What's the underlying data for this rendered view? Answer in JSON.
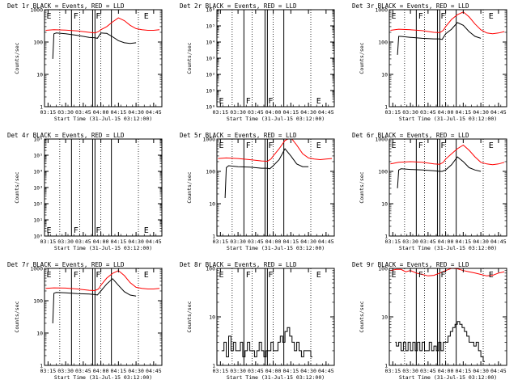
{
  "title_template": "BLACK = Events, RED = LLD",
  "ylabel": "Counts/sec",
  "xlabel": "Start Time (31-Jul-15 03:12:00)",
  "x_ticks": [
    "03:15",
    "03:30",
    "03:45",
    "04:00",
    "04:15",
    "04:30",
    "04:45"
  ],
  "x_range": [
    "03:12",
    "04:52"
  ],
  "dotted_times": [
    "03:25",
    "03:42",
    "04:00",
    "04:32"
  ],
  "solid_times": [
    "03:35",
    "03:53",
    "03:55",
    "04:09"
  ],
  "colors": {
    "events": "#000000",
    "lld": "#ff0000"
  },
  "chart_data": [
    {
      "type": "line",
      "panel": "Det 1r",
      "scale": "log",
      "ylim": [
        1,
        1000
      ],
      "y_ticks": [
        "1",
        "10",
        "100",
        "1000"
      ],
      "markers": [
        {
          "t": "03:13",
          "label": "E"
        },
        {
          "t": "03:36",
          "label": "F"
        },
        {
          "t": "03:55",
          "label": "F"
        },
        {
          "t": "04:36",
          "label": "E"
        }
      ],
      "series": [
        {
          "name": "Events",
          "x": [
            "03:19",
            "03:20",
            "03:22",
            "03:30",
            "03:40",
            "03:50",
            "03:55",
            "03:57",
            "04:00",
            "04:05",
            "04:10",
            "04:15",
            "04:20",
            "04:25",
            "04:30"
          ],
          "values": [
            30,
            180,
            190,
            180,
            160,
            140,
            135,
            130,
            190,
            185,
            145,
            110,
            95,
            90,
            95
          ]
        },
        {
          "name": "LLD",
          "x": [
            "03:13",
            "03:20",
            "03:30",
            "03:40",
            "03:50",
            "03:55",
            "03:58",
            "04:00",
            "04:05",
            "04:10",
            "04:15",
            "04:20",
            "04:25",
            "04:30",
            "04:35",
            "04:40",
            "04:45",
            "04:50"
          ],
          "values": [
            230,
            240,
            235,
            220,
            200,
            190,
            210,
            240,
            300,
            420,
            560,
            460,
            330,
            260,
            240,
            230,
            230,
            240
          ]
        }
      ]
    },
    {
      "type": "line",
      "panel": "Det 2r",
      "scale": "log",
      "ylim": [
        1,
        1000000
      ],
      "y_ticks": [
        "10⁰",
        "10¹",
        "10²",
        "10³",
        "10⁴",
        "10⁵",
        "10⁶"
      ],
      "markers": [
        {
          "t": "03:13",
          "label": "E"
        },
        {
          "t": "03:36",
          "label": "F"
        },
        {
          "t": "03:55",
          "label": "F"
        },
        {
          "t": "04:36",
          "label": "E"
        }
      ],
      "series": []
    },
    {
      "type": "line",
      "panel": "Det 3r",
      "scale": "log",
      "ylim": [
        1,
        1000
      ],
      "y_ticks": [
        "1",
        "10",
        "100",
        "1000"
      ],
      "markers": [
        {
          "t": "03:13",
          "label": "E"
        },
        {
          "t": "03:36",
          "label": "F"
        },
        {
          "t": "03:55",
          "label": "F"
        },
        {
          "t": "04:36",
          "label": "E"
        }
      ],
      "series": [
        {
          "name": "Events",
          "x": [
            "03:19",
            "03:20",
            "03:22",
            "03:30",
            "03:40",
            "03:50",
            "03:55",
            "03:57",
            "04:00",
            "04:05",
            "04:10",
            "04:15",
            "04:20",
            "04:25",
            "04:30"
          ],
          "values": [
            40,
            150,
            150,
            140,
            130,
            125,
            125,
            120,
            180,
            250,
            400,
            330,
            210,
            150,
            130
          ]
        },
        {
          "name": "LLD",
          "x": [
            "03:13",
            "03:20",
            "03:30",
            "03:40",
            "03:50",
            "03:55",
            "03:58",
            "04:00",
            "04:05",
            "04:10",
            "04:15",
            "04:20",
            "04:25",
            "04:30",
            "04:35",
            "04:40",
            "04:45",
            "04:50"
          ],
          "values": [
            230,
            250,
            240,
            225,
            200,
            195,
            230,
            300,
            500,
            700,
            850,
            600,
            360,
            240,
            190,
            180,
            190,
            210
          ]
        }
      ]
    },
    {
      "type": "line",
      "panel": "Det 4r",
      "scale": "log",
      "ylim": [
        1,
        1000000
      ],
      "y_ticks": [
        "10⁰",
        "10¹",
        "10²",
        "10³",
        "10⁴",
        "10⁵",
        "10⁶"
      ],
      "markers": [
        {
          "t": "03:13",
          "label": "E"
        },
        {
          "t": "03:36",
          "label": "F"
        },
        {
          "t": "03:55",
          "label": "F"
        },
        {
          "t": "04:36",
          "label": "E"
        }
      ],
      "series": []
    },
    {
      "type": "line",
      "panel": "Det 5r",
      "scale": "log",
      "ylim": [
        1,
        1000
      ],
      "y_ticks": [
        "1",
        "10",
        "100",
        "1000"
      ],
      "markers": [
        {
          "t": "03:13",
          "label": "E"
        },
        {
          "t": "03:36",
          "label": "F"
        },
        {
          "t": "03:55",
          "label": "F"
        },
        {
          "t": "04:36",
          "label": "E"
        }
      ],
      "series": [
        {
          "name": "Events",
          "x": [
            "03:19",
            "03:20",
            "03:22",
            "03:30",
            "03:40",
            "03:50",
            "03:55",
            "03:57",
            "04:00",
            "04:05",
            "04:10",
            "04:15",
            "04:20",
            "04:25",
            "04:30"
          ],
          "values": [
            15,
            130,
            150,
            140,
            135,
            125,
            125,
            120,
            150,
            230,
            500,
            300,
            170,
            140,
            140
          ]
        },
        {
          "name": "LLD",
          "x": [
            "03:13",
            "03:20",
            "03:30",
            "03:40",
            "03:50",
            "03:55",
            "03:58",
            "04:00",
            "04:05",
            "04:10",
            "04:15",
            "04:20",
            "04:25",
            "04:30",
            "04:35",
            "04:40",
            "04:45",
            "04:50"
          ],
          "values": [
            250,
            260,
            250,
            230,
            210,
            205,
            240,
            300,
            500,
            900,
            1100,
            650,
            350,
            260,
            240,
            230,
            240,
            250
          ]
        }
      ]
    },
    {
      "type": "line",
      "panel": "Det 6r",
      "scale": "log",
      "ylim": [
        1,
        1000
      ],
      "y_ticks": [
        "1",
        "10",
        "100",
        "1000"
      ],
      "markers": [
        {
          "t": "03:13",
          "label": "E"
        },
        {
          "t": "03:36",
          "label": "F"
        },
        {
          "t": "03:55",
          "label": "F"
        },
        {
          "t": "04:36",
          "label": "E"
        }
      ],
      "series": [
        {
          "name": "Events",
          "x": [
            "03:19",
            "03:20",
            "03:22",
            "03:30",
            "03:40",
            "03:50",
            "03:55",
            "03:57",
            "04:00",
            "04:05",
            "04:10",
            "04:15",
            "04:20",
            "04:25",
            "04:30"
          ],
          "values": [
            30,
            110,
            120,
            115,
            110,
            105,
            100,
            100,
            110,
            160,
            280,
            200,
            130,
            110,
            100
          ]
        },
        {
          "name": "LLD",
          "x": [
            "03:13",
            "03:20",
            "03:30",
            "03:40",
            "03:50",
            "03:55",
            "03:58",
            "04:00",
            "04:05",
            "04:10",
            "04:15",
            "04:20",
            "04:25",
            "04:30",
            "04:35",
            "04:40",
            "04:45",
            "04:50"
          ],
          "values": [
            170,
            190,
            200,
            190,
            170,
            165,
            190,
            240,
            350,
            500,
            650,
            450,
            280,
            190,
            170,
            160,
            170,
            190
          ]
        }
      ]
    },
    {
      "type": "line",
      "panel": "Det 7r",
      "scale": "log",
      "ylim": [
        1,
        1000
      ],
      "y_ticks": [
        "1",
        "10",
        "100",
        "1000"
      ],
      "markers": [
        {
          "t": "03:13",
          "label": "E"
        },
        {
          "t": "03:36",
          "label": "F"
        },
        {
          "t": "03:55",
          "label": "F"
        },
        {
          "t": "04:36",
          "label": "E"
        }
      ],
      "series": [
        {
          "name": "Events",
          "x": [
            "03:19",
            "03:20",
            "03:22",
            "03:30",
            "03:40",
            "03:50",
            "03:55",
            "03:57",
            "04:00",
            "04:05",
            "04:10",
            "04:15",
            "04:20",
            "04:25",
            "04:30"
          ],
          "values": [
            20,
            170,
            180,
            175,
            165,
            160,
            155,
            150,
            200,
            330,
            480,
            300,
            190,
            150,
            140
          ]
        },
        {
          "name": "LLD",
          "x": [
            "03:13",
            "03:20",
            "03:30",
            "03:40",
            "03:50",
            "03:55",
            "03:58",
            "04:00",
            "04:05",
            "04:10",
            "04:15",
            "04:20",
            "04:25",
            "04:30",
            "04:35",
            "04:40",
            "04:45",
            "04:50"
          ],
          "values": [
            240,
            250,
            245,
            230,
            210,
            205,
            230,
            300,
            500,
            700,
            850,
            600,
            360,
            260,
            240,
            230,
            230,
            240
          ]
        }
      ]
    },
    {
      "type": "line",
      "panel": "Det 8r",
      "scale": "log",
      "ylim": [
        1,
        100
      ],
      "y_ticks": [
        "1",
        "10",
        "100"
      ],
      "markers": [
        {
          "t": "03:13",
          "label": "E"
        },
        {
          "t": "03:36",
          "label": "F"
        },
        {
          "t": "03:55",
          "label": "F"
        },
        {
          "t": "04:36",
          "label": "E"
        }
      ],
      "series": [
        {
          "name": "Events",
          "x": [
            "03:16",
            "03:18",
            "03:20",
            "03:22",
            "03:24",
            "03:26",
            "03:28",
            "03:30",
            "03:32",
            "03:34",
            "03:36",
            "03:38",
            "03:40",
            "03:42",
            "03:44",
            "03:46",
            "03:48",
            "03:50",
            "03:52",
            "03:54",
            "03:56",
            "03:58",
            "04:00",
            "04:02",
            "04:04",
            "04:06",
            "04:08",
            "04:10",
            "04:12",
            "04:14",
            "04:16",
            "04:18",
            "04:20",
            "04:22",
            "04:24",
            "04:26",
            "04:28",
            "04:30",
            "04:32"
          ],
          "values": [
            2,
            3,
            1.5,
            4,
            2,
            3,
            2,
            2,
            3,
            1.5,
            2,
            3,
            2,
            2,
            1.5,
            2,
            3,
            2,
            1.5,
            2,
            2,
            3,
            2,
            2,
            3,
            4,
            3,
            5,
            6,
            4,
            3,
            2,
            3,
            2,
            1.5,
            2,
            2,
            2,
            1.5
          ]
        }
      ]
    },
    {
      "type": "line",
      "panel": "Det 9r",
      "scale": "log",
      "ylim": [
        1,
        100
      ],
      "y_ticks": [
        "1",
        "10",
        "100"
      ],
      "markers": [
        {
          "t": "03:13",
          "label": "E"
        },
        {
          "t": "03:36",
          "label": "F"
        },
        {
          "t": "03:55",
          "label": "F"
        },
        {
          "t": "04:36",
          "label": "E"
        }
      ],
      "series": [
        {
          "name": "Events",
          "x": [
            "03:17",
            "03:18",
            "03:20",
            "03:22",
            "03:24",
            "03:26",
            "03:28",
            "03:30",
            "03:32",
            "03:34",
            "03:36",
            "03:38",
            "03:40",
            "03:42",
            "03:44",
            "03:46",
            "03:48",
            "03:50",
            "03:52",
            "03:54",
            "03:56",
            "03:58",
            "04:00",
            "04:02",
            "04:04",
            "04:06",
            "04:08",
            "04:10",
            "04:12",
            "04:14",
            "04:16",
            "04:18",
            "04:20",
            "04:22",
            "04:24",
            "04:26",
            "04:28",
            "04:30",
            "04:32"
          ],
          "values": [
            3,
            2.5,
            3,
            2,
            3,
            2,
            3,
            2,
            3,
            2,
            3,
            2,
            3,
            2,
            2,
            3,
            2,
            2.5,
            2,
            3,
            2,
            3,
            3,
            4,
            5,
            6,
            7,
            8,
            7,
            6,
            5,
            4,
            3,
            3,
            2.5,
            3,
            2,
            1.5,
            1.2
          ]
        },
        {
          "name": "LLD",
          "x": [
            "03:13",
            "03:18",
            "03:22",
            "03:26",
            "03:30",
            "03:35",
            "03:40",
            "03:45",
            "03:50",
            "03:55",
            "04:00",
            "04:05",
            "04:10",
            "04:15",
            "04:20",
            "04:25",
            "04:30",
            "04:35",
            "04:40",
            "04:45",
            "04:50"
          ],
          "values": [
            90,
            95,
            95,
            85,
            90,
            80,
            75,
            70,
            72,
            80,
            90,
            100,
            98,
            90,
            85,
            80,
            75,
            70,
            72,
            80,
            85
          ]
        }
      ]
    }
  ]
}
